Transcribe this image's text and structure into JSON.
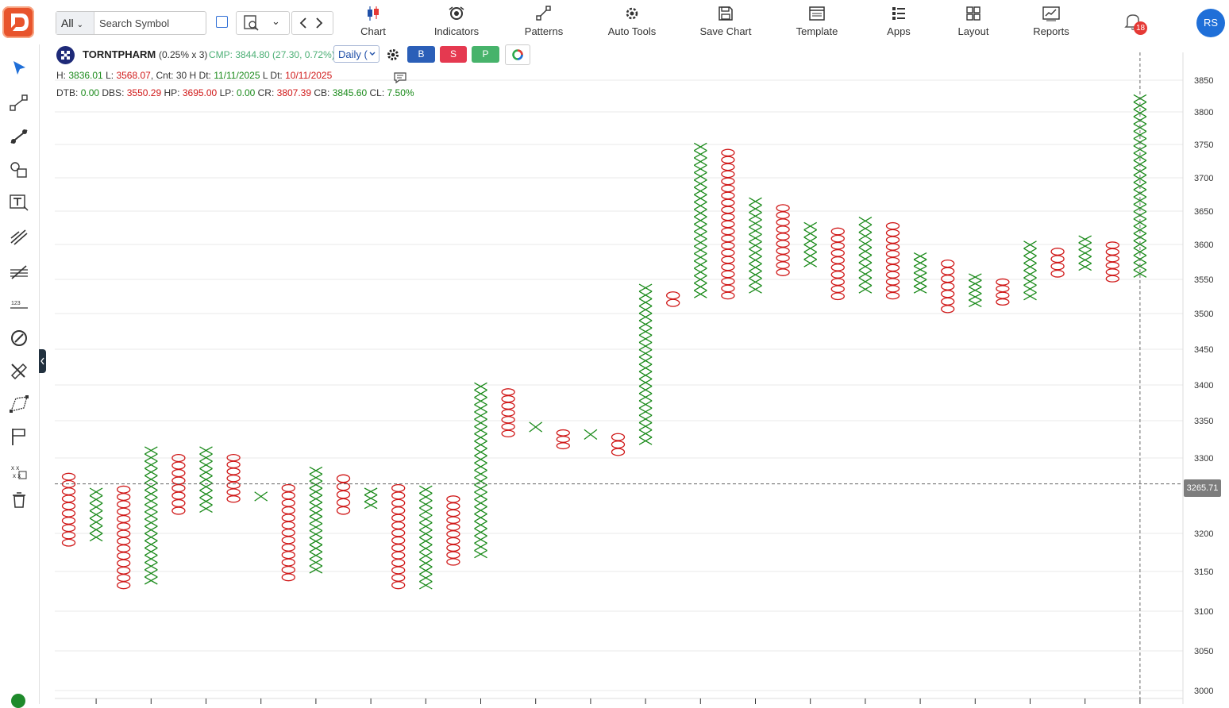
{
  "toolbar": {
    "search_filter": "All",
    "search_placeholder": "Search Symbol",
    "items": [
      {
        "label": "Chart",
        "icon": "candlestick-icon"
      },
      {
        "label": "Indicators",
        "icon": "indicators-icon"
      },
      {
        "label": "Patterns",
        "icon": "patterns-icon"
      },
      {
        "label": "Auto Tools",
        "icon": "auto-tools-icon"
      },
      {
        "label": "Save Chart",
        "icon": "save-icon"
      },
      {
        "label": "Template",
        "icon": "template-icon"
      },
      {
        "label": "Apps",
        "icon": "apps-icon"
      },
      {
        "label": "Layout",
        "icon": "layout-icon"
      },
      {
        "label": "Reports",
        "icon": "reports-icon"
      }
    ],
    "notification_count": "18",
    "avatar_initials": "RS"
  },
  "symbol": {
    "name": "TORNTPHARM",
    "box": "(0.25% x 3)",
    "cmp": "CMP: 3844.80 (27.30, 0.72%)",
    "interval": "Daily (",
    "buy": "B",
    "sell": "S",
    "p": "P"
  },
  "stats1": {
    "h_label": "H:",
    "h": "3836.01",
    "l_label": "L:",
    "l": "3568.07",
    "cnt": "Cnt: 30 H",
    "dt_label": "Dt:",
    "dt": "11/11/2025",
    "ldt_label": "L Dt:",
    "ldt": "10/11/2025"
  },
  "stats2": {
    "dtb_label": "DTB:",
    "dtb": "0.00",
    "dbs_label": "DBS:",
    "dbs": "3550.29",
    "hp_label": "HP:",
    "hp": "3695.00",
    "lp_label": "LP:",
    "lp": "0.00",
    "cr_label": "CR:",
    "cr": "3807.39",
    "cb_label": "CB:",
    "cb": "3845.60",
    "cl_label": "CL:",
    "cl": "7.50%"
  },
  "crosshair_price": "3265.71",
  "colors": {
    "x": "#1a8a1a",
    "o": "#d01818",
    "accent": "#1f6fd8"
  },
  "chart_data": {
    "type": "point-and-figure",
    "y_ticks": [
      3000,
      3050,
      3100,
      3150,
      3200,
      3300,
      3350,
      3400,
      3450,
      3500,
      3550,
      3600,
      3650,
      3700,
      3750,
      3800,
      3850
    ],
    "ylim": [
      2990,
      3870
    ],
    "columns": [
      {
        "type": "O",
        "high": 3280,
        "low": 3183
      },
      {
        "type": "X",
        "high": 3260,
        "low": 3190
      },
      {
        "type": "O",
        "high": 3263,
        "low": 3128
      },
      {
        "type": "X",
        "high": 3315,
        "low": 3134
      },
      {
        "type": "O",
        "high": 3305,
        "low": 3225
      },
      {
        "type": "X",
        "high": 3315,
        "low": 3228
      },
      {
        "type": "O",
        "high": 3305,
        "low": 3241
      },
      {
        "type": "X",
        "high": 3255,
        "low": 3243
      },
      {
        "type": "O",
        "high": 3265,
        "low": 3138
      },
      {
        "type": "X",
        "high": 3288,
        "low": 3148
      },
      {
        "type": "O",
        "high": 3278,
        "low": 3225
      },
      {
        "type": "X",
        "high": 3260,
        "low": 3233
      },
      {
        "type": "O",
        "high": 3265,
        "low": 3128
      },
      {
        "type": "X",
        "high": 3263,
        "low": 3128
      },
      {
        "type": "O",
        "high": 3250,
        "low": 3158
      },
      {
        "type": "X",
        "high": 3403,
        "low": 3168
      },
      {
        "type": "O",
        "high": 3395,
        "low": 3328
      },
      {
        "type": "X",
        "high": 3348,
        "low": 3335
      },
      {
        "type": "O",
        "high": 3338,
        "low": 3312
      },
      {
        "type": "X",
        "high": 3338,
        "low": 3325
      },
      {
        "type": "O",
        "high": 3333,
        "low": 3303
      },
      {
        "type": "X",
        "high": 3543,
        "low": 3318
      },
      {
        "type": "O",
        "high": 3532,
        "low": 3510
      },
      {
        "type": "X",
        "high": 3752,
        "low": 3523
      },
      {
        "type": "O",
        "high": 3743,
        "low": 3521
      },
      {
        "type": "X",
        "high": 3670,
        "low": 3530
      },
      {
        "type": "O",
        "high": 3660,
        "low": 3555
      },
      {
        "type": "X",
        "high": 3633,
        "low": 3568
      },
      {
        "type": "O",
        "high": 3625,
        "low": 3520
      },
      {
        "type": "X",
        "high": 3641,
        "low": 3530
      },
      {
        "type": "O",
        "high": 3633,
        "low": 3521
      },
      {
        "type": "X",
        "high": 3588,
        "low": 3530
      },
      {
        "type": "O",
        "high": 3578,
        "low": 3501
      },
      {
        "type": "X",
        "high": 3558,
        "low": 3510
      },
      {
        "type": "O",
        "high": 3551,
        "low": 3512
      },
      {
        "type": "X",
        "high": 3605,
        "low": 3520
      },
      {
        "type": "O",
        "high": 3595,
        "low": 3553
      },
      {
        "type": "X",
        "high": 3613,
        "low": 3563
      },
      {
        "type": "O",
        "high": 3604,
        "low": 3546
      },
      {
        "type": "X",
        "high": 3827,
        "low": 3553
      }
    ]
  }
}
